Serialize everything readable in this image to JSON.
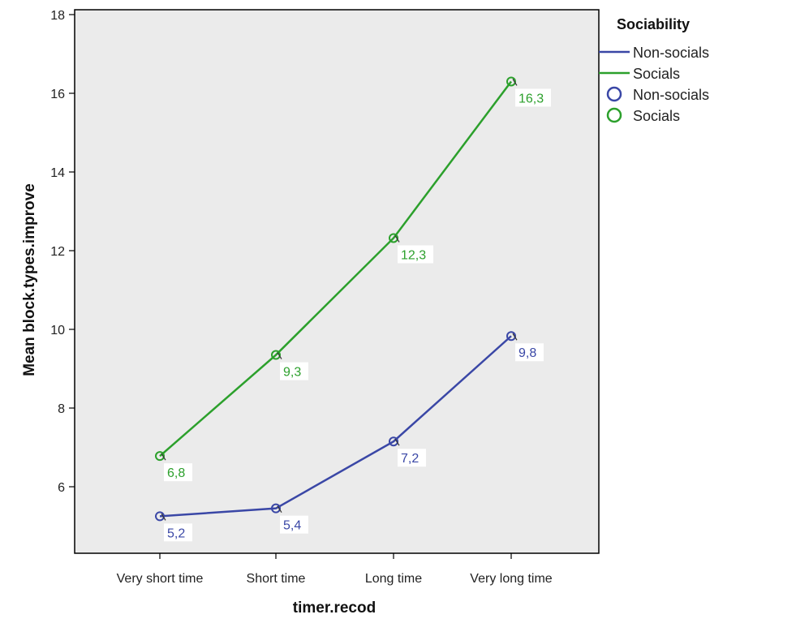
{
  "chart_data": {
    "type": "line",
    "xlabel": "timer.recod",
    "ylabel": "Mean block.types.improve",
    "categories": [
      "Very short time",
      "Short time",
      "Long time",
      "Very long time"
    ],
    "ylim": [
      4.5,
      18
    ],
    "yticks": [
      6,
      8,
      10,
      12,
      14,
      16,
      18
    ],
    "grid": false,
    "legend_position": "right",
    "legend": {
      "title": "Sociability",
      "line_entries": [
        "Non-socials",
        "Socials"
      ],
      "marker_entries": [
        "Non-socials",
        "Socials"
      ]
    },
    "series": [
      {
        "name": "Non-socials",
        "color": "#3a47a6",
        "values": [
          5.25,
          5.45,
          7.15,
          9.83
        ],
        "labels": [
          "5,2",
          "5,4",
          "7,2",
          "9,8"
        ]
      },
      {
        "name": "Socials",
        "color": "#2ca02c",
        "values": [
          6.78,
          9.35,
          12.32,
          16.3
        ],
        "labels": [
          "6,8",
          "9,3",
          "12,3",
          "16,3"
        ]
      }
    ]
  },
  "colors": {
    "plot_background": "#ebebeb",
    "axis": "#000000"
  }
}
